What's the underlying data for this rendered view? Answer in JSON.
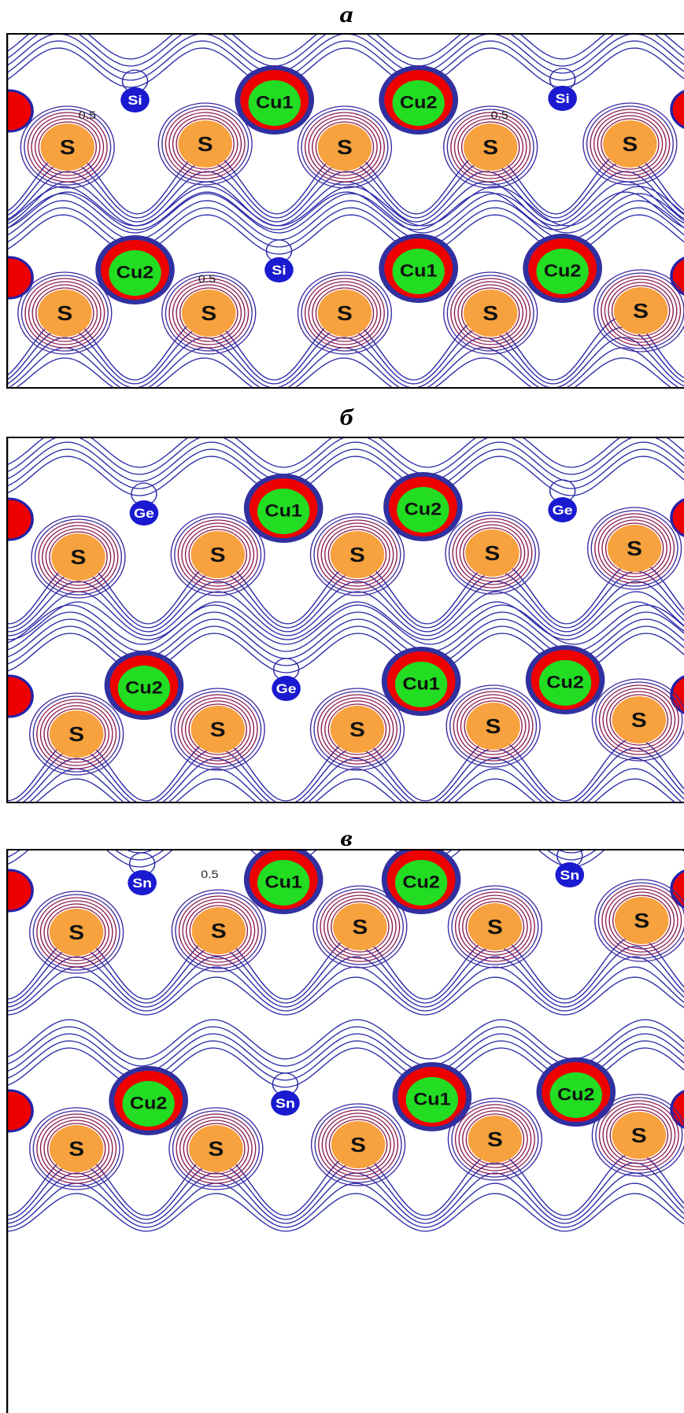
{
  "panels": [
    {
      "label": "а",
      "rows": [
        [
          "Si",
          "Cu1",
          "Cu2",
          "Si",
          "S",
          "S",
          "S",
          "S",
          "S"
        ],
        [
          "Cu2",
          "Si",
          "Cu1",
          "Cu2",
          "S",
          "S",
          "S",
          "S",
          "S"
        ]
      ],
      "contour_labels": [
        "0.5",
        "0.5",
        "0.5"
      ]
    },
    {
      "label": "б",
      "rows": [
        [
          "Ge",
          "Cu1",
          "Cu2",
          "Ge",
          "S",
          "S",
          "S",
          "S",
          "S"
        ],
        [
          "Cu2",
          "Ge",
          "Cu1",
          "Cu2",
          "S",
          "S",
          "S",
          "S",
          "S"
        ]
      ],
      "contour_labels": []
    },
    {
      "label": "в",
      "rows": [
        [
          "Sn",
          "Cu1",
          "Cu2",
          "Sn",
          "S",
          "S",
          "S",
          "S",
          "S"
        ],
        [
          "Cu2",
          "Sn",
          "Cu1",
          "Cu2",
          "S",
          "S",
          "S",
          "S",
          "S"
        ]
      ],
      "contour_labels": [
        "0.5"
      ]
    }
  ]
}
